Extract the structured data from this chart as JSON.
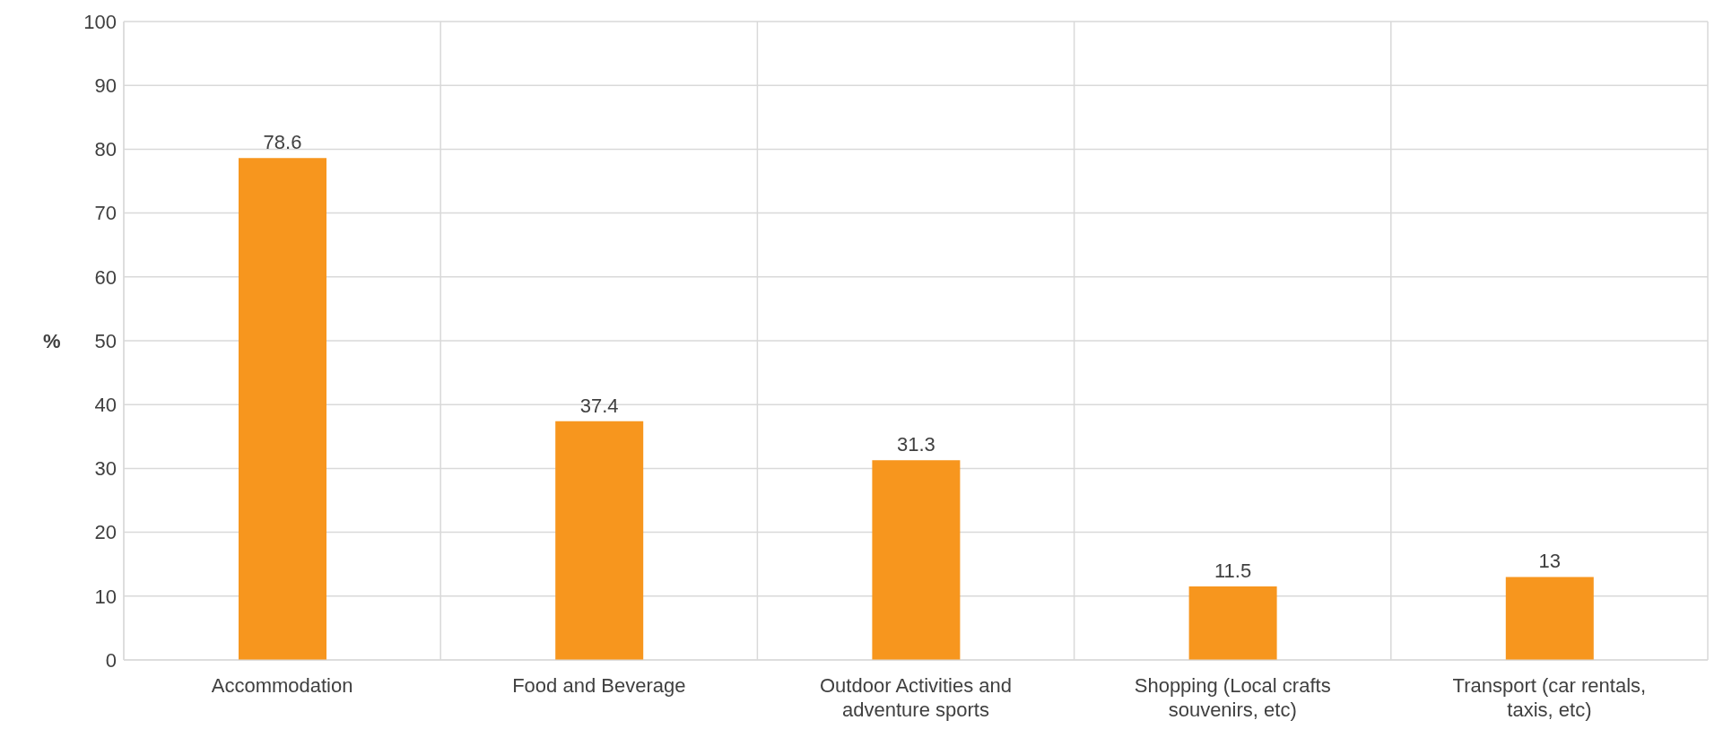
{
  "chart_data": {
    "type": "bar",
    "ylabel": "%",
    "categories": [
      "Accommodation",
      "Food and Beverage",
      "Outdoor Activities and adventure sports",
      "Shopping (Local crafts souvenirs, etc)",
      "Transport (car rentals, taxis, etc)"
    ],
    "values": [
      78.6,
      37.4,
      31.3,
      11.5,
      13
    ],
    "color": "#f7961e",
    "ylim": [
      0,
      100
    ],
    "yticks": [
      0,
      10,
      20,
      30,
      40,
      50,
      60,
      70,
      80,
      90,
      100
    ],
    "grid": true,
    "data_labels": true
  }
}
